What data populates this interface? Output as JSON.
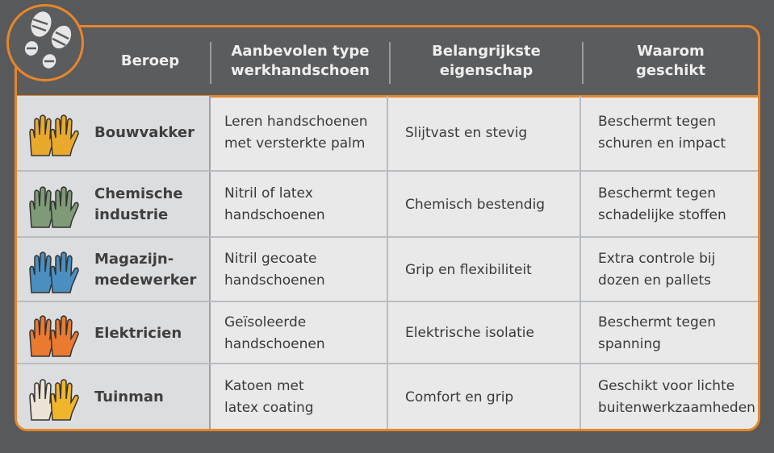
{
  "logo": {
    "icon": "boot-prints-icon"
  },
  "header_lines": [
    [
      "Beroep"
    ],
    [
      "Aanbevolen type",
      "werkhandschoen"
    ],
    [
      "Belangrijkste",
      "eigenschap"
    ],
    [
      "Waarom",
      "geschikt"
    ]
  ],
  "colors": {
    "accent": "#e8862a",
    "header_bg": "#5b5c5e",
    "background": "#58595b"
  },
  "rows": [
    {
      "job": [
        "Bouwvakker"
      ],
      "type": [
        "Leren handschoenen",
        "met versterkte palm"
      ],
      "property": [
        "Slijtvast en stevig"
      ],
      "why": [
        "Beschermt tegen",
        "schuren en impact"
      ],
      "glove_color": "#e8a92c",
      "glove_color2": "#e8a92c"
    },
    {
      "job": [
        "Chemische",
        "industrie"
      ],
      "type": [
        "Nitril of latex",
        "handschoenen"
      ],
      "property": [
        "Chemisch bestendig"
      ],
      "why": [
        "Beschermt tegen",
        "schadelijke stoffen"
      ],
      "glove_color": "#7f9a77",
      "glove_color2": "#7f9a77"
    },
    {
      "job": [
        "Magazijn-",
        "medewerker"
      ],
      "type": [
        "Nitril gecoate",
        "handschoenen"
      ],
      "property": [
        "Grip en flexibiliteit"
      ],
      "why": [
        "Extra controle bij",
        "dozen en pallets"
      ],
      "glove_color": "#4a8fbf",
      "glove_color2": "#4a8fbf"
    },
    {
      "job": [
        "Elektricien"
      ],
      "type": [
        "Geïsoleerde",
        "handschoenen"
      ],
      "property": [
        "Elektrische isolatie"
      ],
      "why": [
        "Beschermt tegen",
        "spanning"
      ],
      "glove_color": "#ea7a30",
      "glove_color2": "#ea7a30"
    },
    {
      "job": [
        "Tuinman"
      ],
      "type": [
        "Katoen met",
        "latex coating"
      ],
      "property": [
        "Comfort en grip"
      ],
      "why": [
        "Geschikt voor lichte",
        "buitenwerkzaamheden"
      ],
      "glove_color": "#ece4d6",
      "glove_color2": "#f0b52a"
    }
  ]
}
